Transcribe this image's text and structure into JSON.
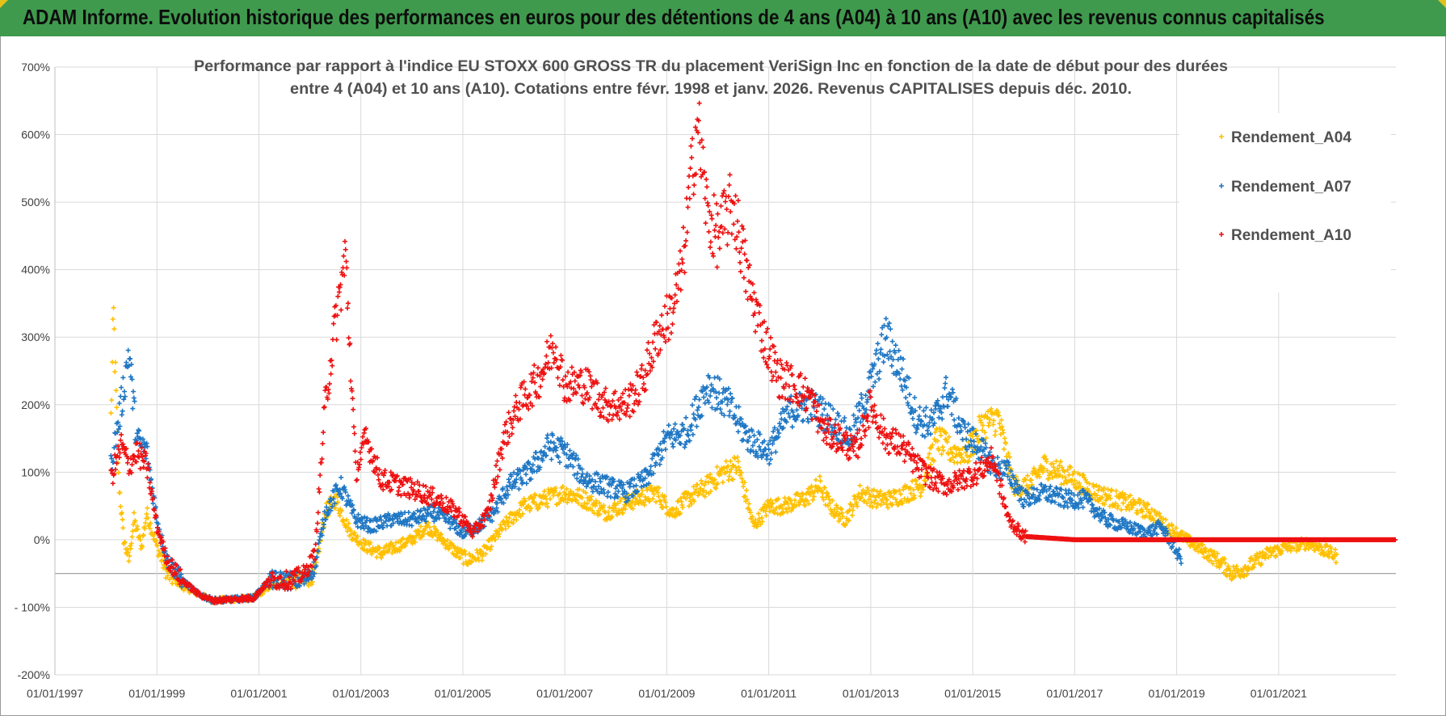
{
  "header": {
    "title": "ADAM Informe. Evolution historique des performances en euros pour des détentions de 4 ans (A04) à 10 ans (A10) avec les revenus connus capitalisés"
  },
  "colors": {
    "banner": "#3f9a4d",
    "A04": "#ffc000",
    "A07": "#1f77c4",
    "A10": "#ee1111",
    "grid": "#d9d9d9",
    "axis_text": "#404040"
  },
  "chart_data": {
    "type": "scatter",
    "title_line1": "Performance par rapport à l'indice EU STOXX 600 GROSS TR  du placement VeriSign Inc en fonction de la date de début pour des durées",
    "title_line2": "entre 4 (A04) et 10 ans (A10). Cotations entre févr. 1998 et janv. 2026. Revenus CAPITALISES depuis déc. 2010.",
    "x_tick_labels": [
      "01/01/1997",
      "01/01/1999",
      "01/01/2001",
      "01/01/2003",
      "01/01/2005",
      "01/01/2007",
      "01/01/2009",
      "01/01/2011",
      "01/01/2013",
      "01/01/2015",
      "01/01/2017",
      "01/01/2019",
      "01/01/2021"
    ],
    "x_ticks_year": [
      1997,
      1999,
      2001,
      2003,
      2005,
      2007,
      2009,
      2011,
      2013,
      2015,
      2017,
      2019,
      2021
    ],
    "xlim": [
      1997,
      2023.3
    ],
    "ylim": [
      -200,
      700
    ],
    "y_ticks": [
      -200,
      -100,
      0,
      100,
      200,
      300,
      400,
      500,
      600,
      700
    ],
    "y_tick_labels": [
      "-200%",
      "- 100%",
      "0%",
      "100%",
      "200%",
      "300%",
      "400%",
      "500%",
      "600%",
      "700%"
    ],
    "legend": [
      "Rendement_A04",
      "Rendement_A07",
      "Rendement_A10"
    ],
    "legend_position": "top-right",
    "series": [
      {
        "name": "Rendement_A04",
        "key": "A04",
        "start": 1998.1,
        "end": 2022.15,
        "points": [
          [
            1998.1,
            180
          ],
          [
            1998.15,
            330
          ],
          [
            1998.25,
            90
          ],
          [
            1998.35,
            0
          ],
          [
            1998.45,
            -30
          ],
          [
            1998.55,
            30
          ],
          [
            1998.7,
            -10
          ],
          [
            1998.8,
            40
          ],
          [
            1999.0,
            -10
          ],
          [
            1999.2,
            -50
          ],
          [
            1999.5,
            -70
          ],
          [
            1999.8,
            -80
          ],
          [
            2000.1,
            -90
          ],
          [
            2000.5,
            -88
          ],
          [
            2000.9,
            -86
          ],
          [
            2001.2,
            -70
          ],
          [
            2001.6,
            -60
          ],
          [
            2001.9,
            -60
          ],
          [
            2002.1,
            -50
          ],
          [
            2002.3,
            40
          ],
          [
            2002.5,
            60
          ],
          [
            2002.8,
            10
          ],
          [
            2003.1,
            -10
          ],
          [
            2003.4,
            -20
          ],
          [
            2003.7,
            -10
          ],
          [
            2004.0,
            0
          ],
          [
            2004.3,
            20
          ],
          [
            2004.6,
            0
          ],
          [
            2004.9,
            -20
          ],
          [
            2005.1,
            -30
          ],
          [
            2005.4,
            -20
          ],
          [
            2005.8,
            20
          ],
          [
            2006.2,
            50
          ],
          [
            2006.6,
            60
          ],
          [
            2007.0,
            70
          ],
          [
            2007.4,
            60
          ],
          [
            2007.8,
            40
          ],
          [
            2008.1,
            50
          ],
          [
            2008.4,
            60
          ],
          [
            2008.8,
            70
          ],
          [
            2009.1,
            40
          ],
          [
            2009.4,
            60
          ],
          [
            2009.8,
            80
          ],
          [
            2010.1,
            100
          ],
          [
            2010.4,
            110
          ],
          [
            2010.7,
            20
          ],
          [
            2011.0,
            50
          ],
          [
            2011.3,
            50
          ],
          [
            2011.7,
            60
          ],
          [
            2012.0,
            80
          ],
          [
            2012.2,
            50
          ],
          [
            2012.5,
            30
          ],
          [
            2012.8,
            70
          ],
          [
            2013.1,
            60
          ],
          [
            2013.4,
            60
          ],
          [
            2013.7,
            70
          ],
          [
            2014.0,
            80
          ],
          [
            2014.3,
            150
          ],
          [
            2014.6,
            130
          ],
          [
            2014.9,
            130
          ],
          [
            2015.2,
            170
          ],
          [
            2015.5,
            180
          ],
          [
            2015.8,
            80
          ],
          [
            2016.1,
            80
          ],
          [
            2016.4,
            110
          ],
          [
            2016.7,
            100
          ],
          [
            2017.0,
            90
          ],
          [
            2017.4,
            70
          ],
          [
            2017.8,
            60
          ],
          [
            2018.2,
            50
          ],
          [
            2018.5,
            40
          ],
          [
            2018.8,
            20
          ],
          [
            2019.0,
            10
          ],
          [
            2019.4,
            -10
          ],
          [
            2019.8,
            -30
          ],
          [
            2020.1,
            -50
          ],
          [
            2020.4,
            -40
          ],
          [
            2020.8,
            -20
          ],
          [
            2021.2,
            -10
          ],
          [
            2021.6,
            -5
          ],
          [
            2022.15,
            -25
          ]
        ]
      },
      {
        "name": "Rendement_A07",
        "key": "A07",
        "start": 1998.1,
        "end": 2019.1,
        "points": [
          [
            1998.1,
            110
          ],
          [
            1998.3,
            200
          ],
          [
            1998.45,
            280
          ],
          [
            1998.6,
            150
          ],
          [
            1998.8,
            130
          ],
          [
            1999.0,
            30
          ],
          [
            1999.2,
            -30
          ],
          [
            1999.5,
            -60
          ],
          [
            1999.8,
            -80
          ],
          [
            2000.1,
            -90
          ],
          [
            2000.5,
            -88
          ],
          [
            2000.9,
            -86
          ],
          [
            2001.2,
            -60
          ],
          [
            2001.6,
            -60
          ],
          [
            2001.9,
            -60
          ],
          [
            2002.1,
            -40
          ],
          [
            2002.3,
            40
          ],
          [
            2002.6,
            80
          ],
          [
            2002.9,
            30
          ],
          [
            2003.2,
            20
          ],
          [
            2003.6,
            30
          ],
          [
            2004.0,
            30
          ],
          [
            2004.4,
            40
          ],
          [
            2004.7,
            30
          ],
          [
            2005.0,
            10
          ],
          [
            2005.3,
            20
          ],
          [
            2005.6,
            40
          ],
          [
            2005.9,
            80
          ],
          [
            2006.3,
            100
          ],
          [
            2006.7,
            140
          ],
          [
            2007.0,
            130
          ],
          [
            2007.4,
            90
          ],
          [
            2007.8,
            80
          ],
          [
            2008.2,
            70
          ],
          [
            2008.6,
            90
          ],
          [
            2009.0,
            150
          ],
          [
            2009.4,
            160
          ],
          [
            2009.8,
            230
          ],
          [
            2010.2,
            200
          ],
          [
            2010.6,
            150
          ],
          [
            2011.0,
            130
          ],
          [
            2011.4,
            190
          ],
          [
            2011.8,
            200
          ],
          [
            2012.2,
            180
          ],
          [
            2012.6,
            150
          ],
          [
            2013.0,
            230
          ],
          [
            2013.3,
            300
          ],
          [
            2013.6,
            250
          ],
          [
            2013.9,
            180
          ],
          [
            2014.2,
            170
          ],
          [
            2014.5,
            220
          ],
          [
            2014.8,
            160
          ],
          [
            2015.1,
            140
          ],
          [
            2015.4,
            110
          ],
          [
            2015.7,
            100
          ],
          [
            2016.0,
            60
          ],
          [
            2016.4,
            70
          ],
          [
            2016.8,
            60
          ],
          [
            2017.2,
            60
          ],
          [
            2017.6,
            30
          ],
          [
            2018.0,
            20
          ],
          [
            2018.4,
            10
          ],
          [
            2018.7,
            20
          ],
          [
            2019.1,
            -30
          ]
        ]
      },
      {
        "name": "Rendement_A10",
        "key": "A10",
        "start": 1998.1,
        "end": 2023.3,
        "points": [
          [
            1998.1,
            90
          ],
          [
            1998.3,
            140
          ],
          [
            1998.45,
            110
          ],
          [
            1998.6,
            130
          ],
          [
            1998.8,
            110
          ],
          [
            1999.0,
            20
          ],
          [
            1999.2,
            -30
          ],
          [
            1999.5,
            -60
          ],
          [
            1999.8,
            -80
          ],
          [
            2000.1,
            -90
          ],
          [
            2000.5,
            -88
          ],
          [
            2000.9,
            -86
          ],
          [
            2001.2,
            -60
          ],
          [
            2001.6,
            -60
          ],
          [
            2001.9,
            -50
          ],
          [
            2002.1,
            -20
          ],
          [
            2002.3,
            200
          ],
          [
            2002.5,
            320
          ],
          [
            2002.7,
            420
          ],
          [
            2002.9,
            100
          ],
          [
            2003.1,
            150
          ],
          [
            2003.4,
            90
          ],
          [
            2003.8,
            80
          ],
          [
            2004.2,
            70
          ],
          [
            2004.5,
            60
          ],
          [
            2004.9,
            40
          ],
          [
            2005.2,
            10
          ],
          [
            2005.5,
            40
          ],
          [
            2005.8,
            150
          ],
          [
            2006.1,
            200
          ],
          [
            2006.5,
            240
          ],
          [
            2006.8,
            290
          ],
          [
            2007.0,
            230
          ],
          [
            2007.4,
            230
          ],
          [
            2007.8,
            200
          ],
          [
            2008.2,
            200
          ],
          [
            2008.5,
            230
          ],
          [
            2008.8,
            300
          ],
          [
            2009.1,
            340
          ],
          [
            2009.3,
            400
          ],
          [
            2009.5,
            550
          ],
          [
            2009.6,
            620
          ],
          [
            2009.8,
            480
          ],
          [
            2010.0,
            450
          ],
          [
            2010.3,
            500
          ],
          [
            2010.6,
            380
          ],
          [
            2010.9,
            300
          ],
          [
            2011.2,
            240
          ],
          [
            2011.5,
            230
          ],
          [
            2011.8,
            210
          ],
          [
            2012.1,
            160
          ],
          [
            2012.4,
            150
          ],
          [
            2012.7,
            130
          ],
          [
            2013.0,
            200
          ],
          [
            2013.3,
            150
          ],
          [
            2013.6,
            140
          ],
          [
            2013.9,
            110
          ],
          [
            2014.2,
            90
          ],
          [
            2014.5,
            80
          ],
          [
            2014.8,
            90
          ],
          [
            2015.1,
            100
          ],
          [
            2015.4,
            120
          ],
          [
            2015.7,
            30
          ],
          [
            2016.0,
            5
          ],
          [
            2017.0,
            0
          ],
          [
            2018.0,
            0
          ],
          [
            2019.0,
            0
          ],
          [
            2020.0,
            0
          ],
          [
            2021.0,
            0
          ],
          [
            2022.0,
            0
          ],
          [
            2023.3,
            0
          ]
        ]
      }
    ]
  }
}
